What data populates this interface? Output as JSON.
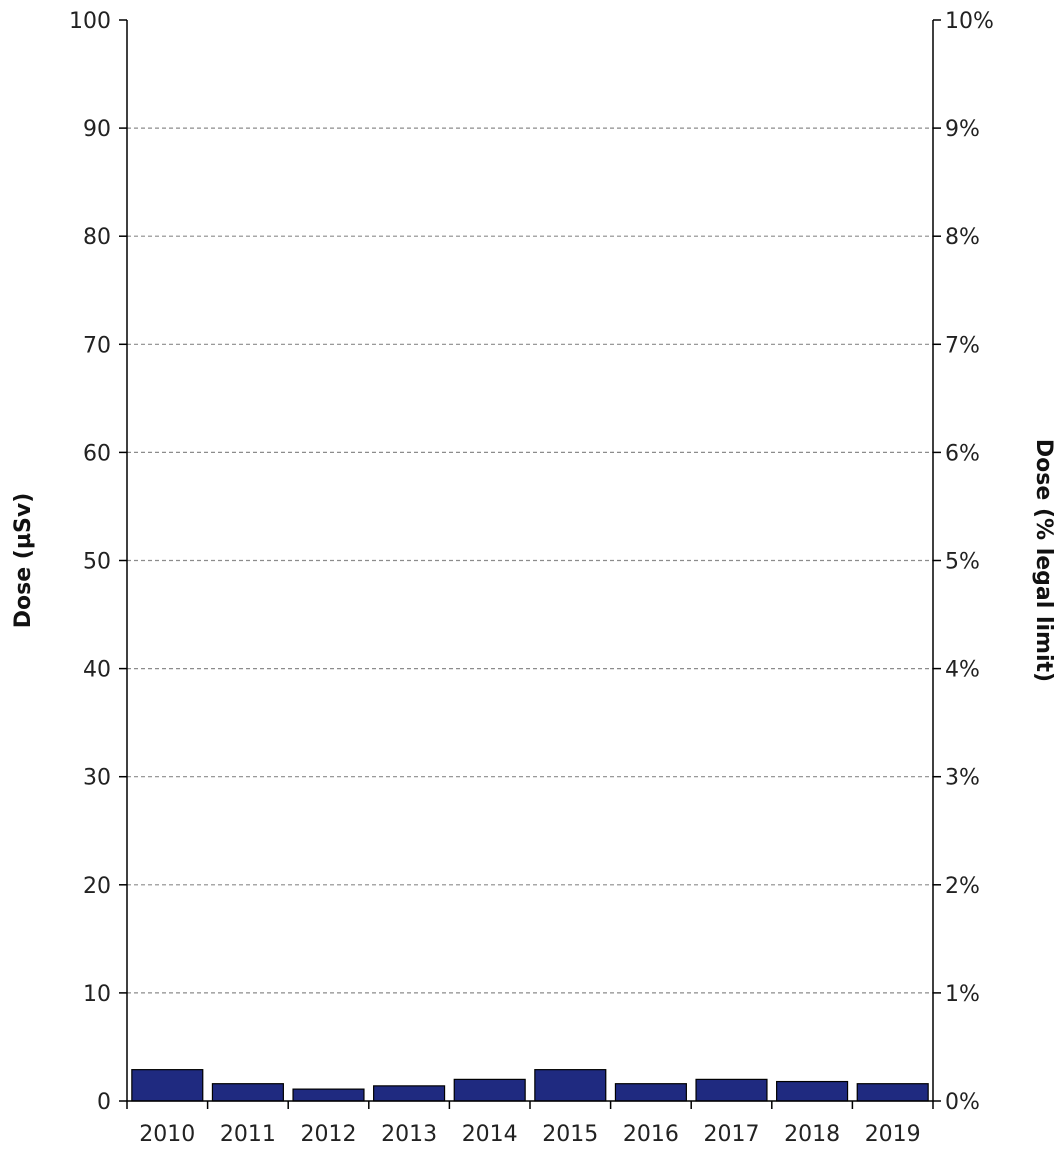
{
  "chart_data": {
    "type": "bar",
    "categories": [
      "2010",
      "2011",
      "2012",
      "2013",
      "2014",
      "2015",
      "2016",
      "2017",
      "2018",
      "2019"
    ],
    "series": [
      {
        "values": [
          2.9,
          1.6,
          1.1,
          1.4,
          2.0,
          2.9,
          1.6,
          2.0,
          1.8,
          1.6
        ]
      }
    ],
    "xlabel": "",
    "ylabel": "Dose  (µSv)",
    "ylim": [
      0,
      100
    ],
    "yticks": [
      "0",
      "10",
      "20",
      "30",
      "40",
      "50",
      "60",
      "70",
      "80",
      "90",
      "100"
    ],
    "y2label": "Dose  (% legal limit)",
    "y2lim": [
      0,
      10
    ],
    "y2ticks": [
      "0%",
      "1%",
      "2%",
      "3%",
      "4%",
      "5%",
      "6%",
      "7%",
      "8%",
      "9%",
      "10%"
    ],
    "grid": "horizontal dashed",
    "legend": "none",
    "bar_color": "#1f2a80",
    "bar_edge_color": "#000000",
    "grid_color": "#8c8c8c"
  }
}
